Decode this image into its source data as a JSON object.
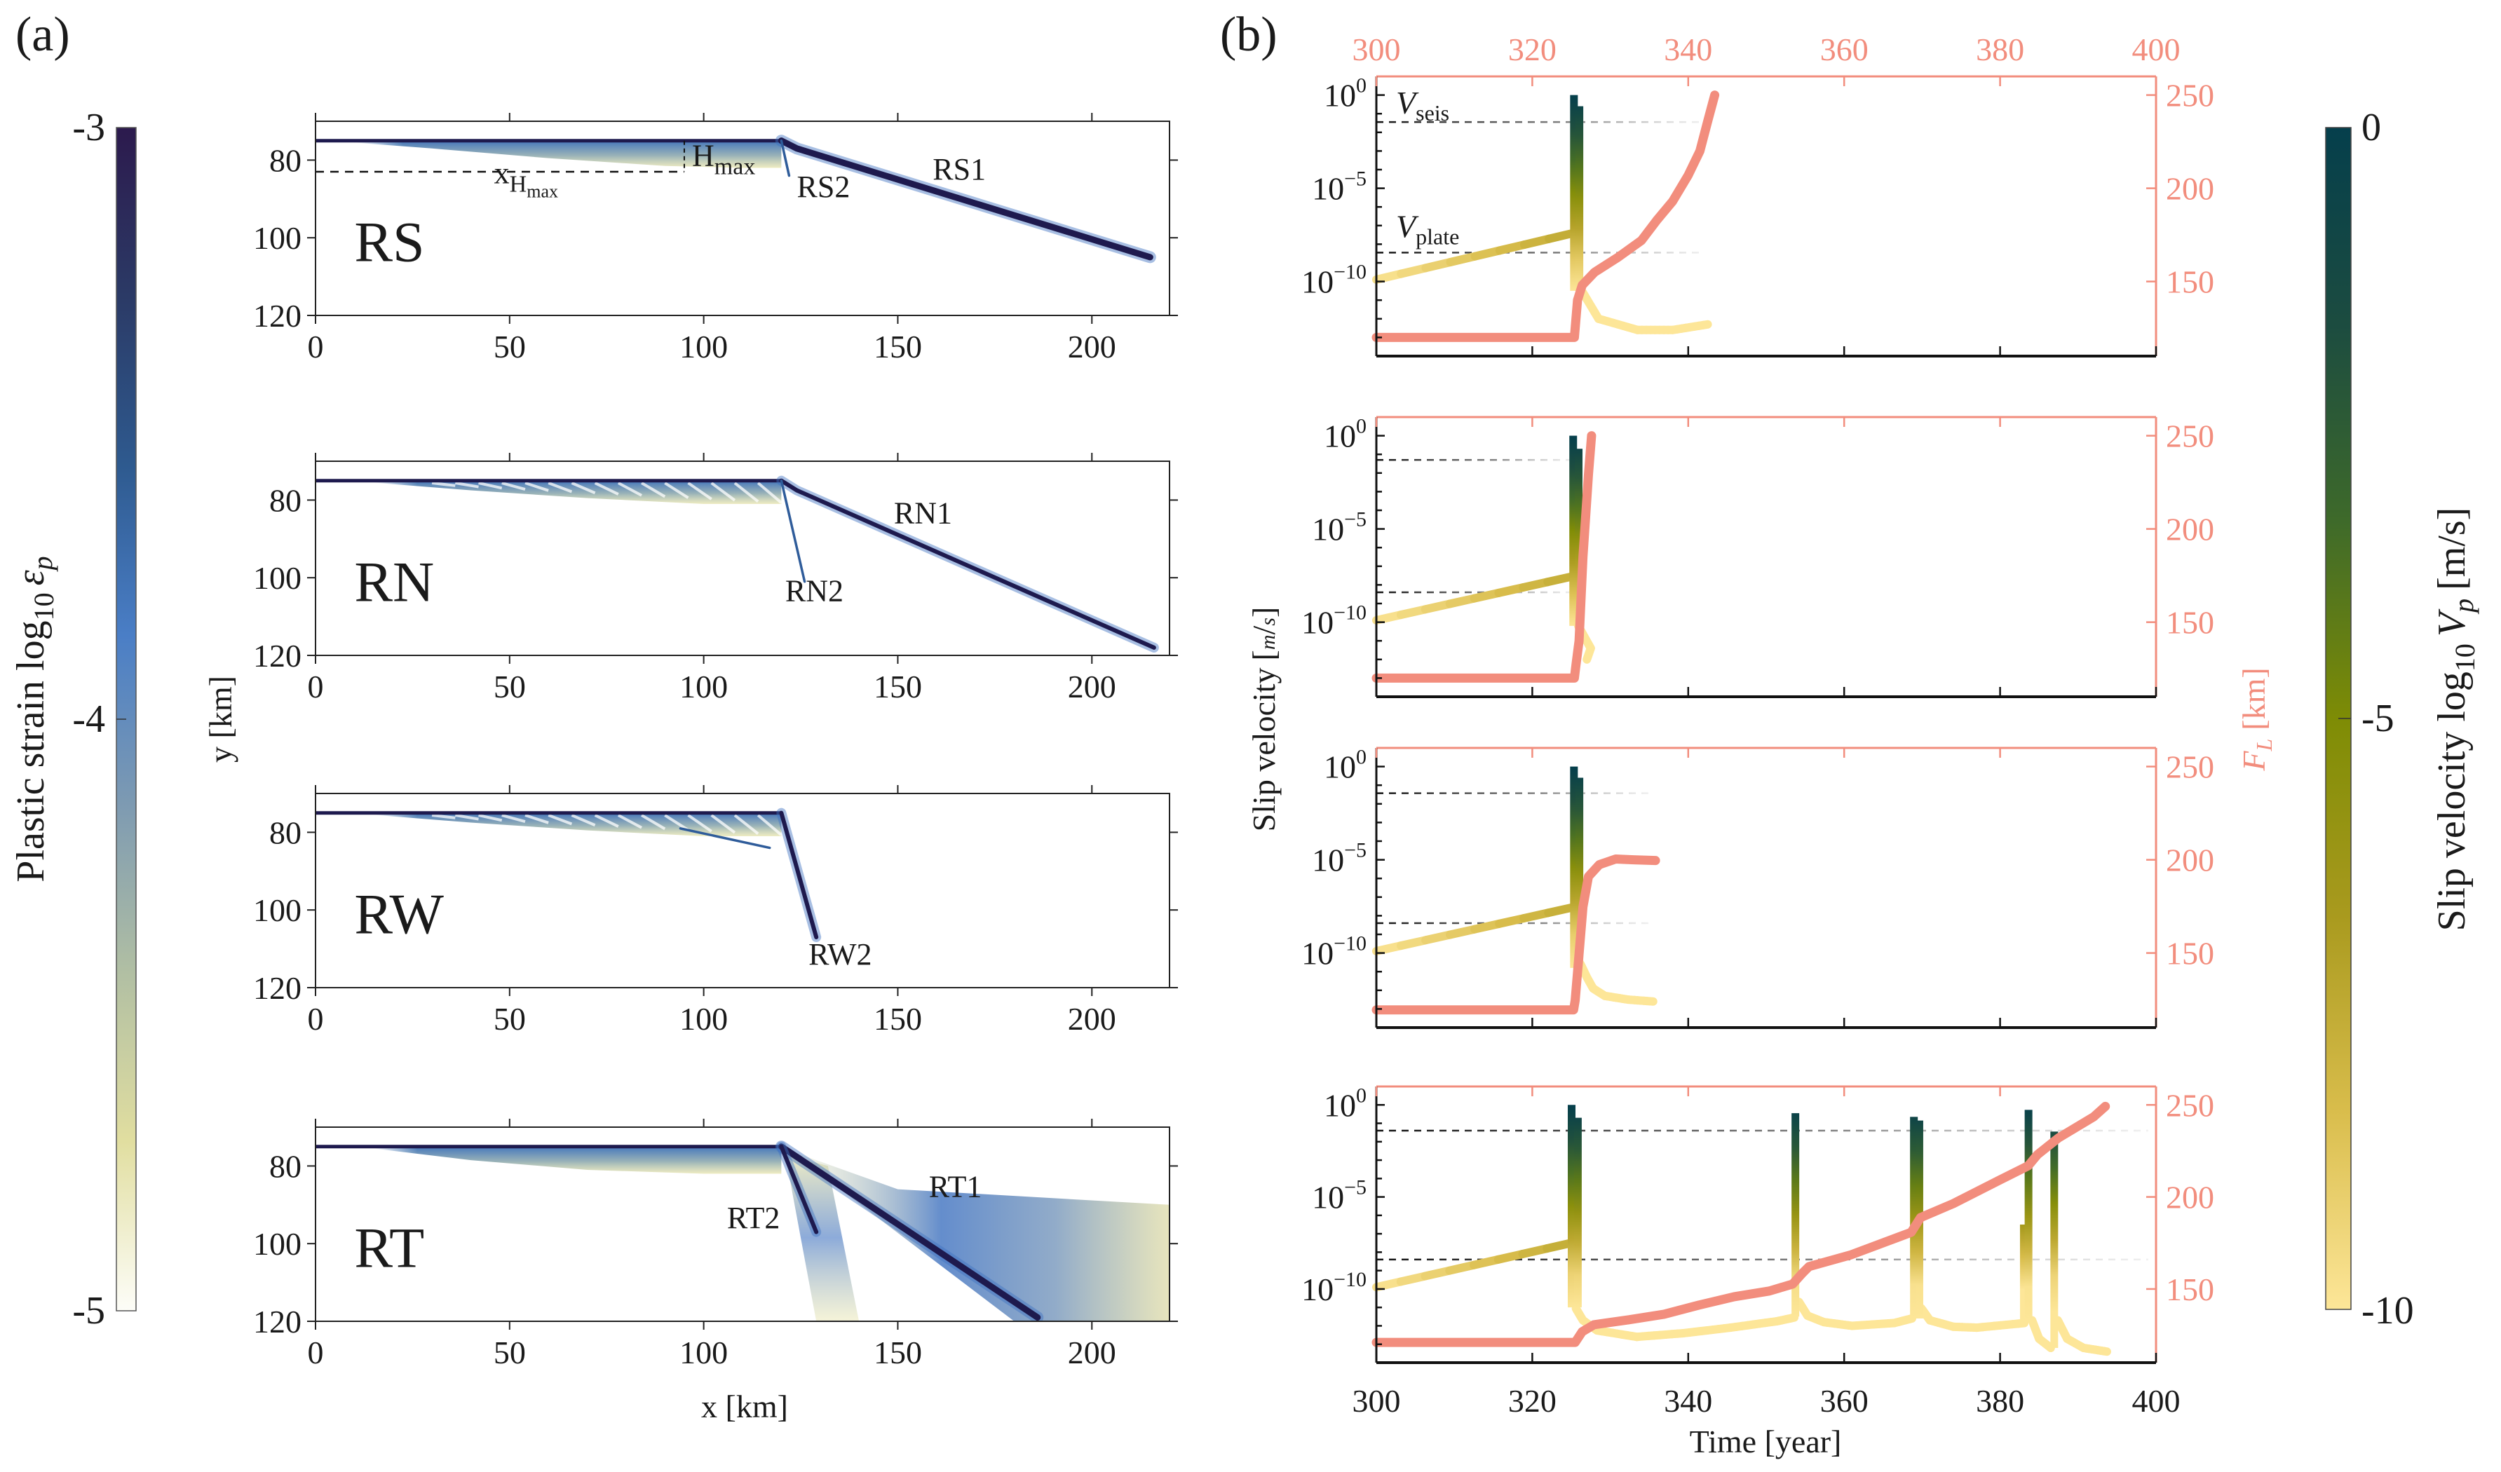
{
  "panel_labels": {
    "a": "(a)",
    "b": "(b)"
  },
  "colorbar_left": {
    "label": "Plastic strain log",
    "label_sub": "10",
    "label_sym": "ε",
    "label_sym_sub": "p",
    "ticks": [
      "-3",
      "-4",
      "-5"
    ],
    "range": [
      -5,
      -3
    ],
    "colors": [
      "#fdfdf8",
      "#e1dea0",
      "#b1bfa3",
      "#7d9ab2",
      "#4a7ec6",
      "#2e5a8f",
      "#2b3a66",
      "#2c1a4d"
    ]
  },
  "colorbar_right": {
    "label": "Slip velocity log",
    "label_sub": "10",
    "label_sym": "V",
    "label_sym_sub": "p",
    "label_unit": "[m/s]",
    "ticks": [
      "0",
      "-5",
      "-10"
    ],
    "range": [
      -10,
      0
    ],
    "colors": [
      "#fde698",
      "#d9bd4c",
      "#a99a1e",
      "#7e8c05",
      "#3e6a2a",
      "#1c4c40",
      "#053f4c"
    ]
  },
  "colors": {
    "fl_curve": "#f28d7d",
    "salmon_axis": "#f28d7d",
    "fault": "#1e1a4e",
    "axis": "#1a1a1a"
  },
  "chart_data": [
    {
      "type": "heatmap",
      "name": "RS",
      "case_label": "RS",
      "xlabel": "",
      "ylabel": "",
      "xlim": [
        0,
        220
      ],
      "ylim": [
        70,
        120
      ],
      "xticks": [
        0,
        50,
        100,
        150,
        200
      ],
      "yticks": [
        80,
        100,
        120
      ],
      "surface_y": 75,
      "wedge": {
        "x": [
          10,
          30,
          60,
          90,
          110,
          120
        ],
        "bottom_y": [
          75.5,
          77,
          79.5,
          81.5,
          82,
          82
        ]
      },
      "faults": [
        {
          "name": "RS1",
          "points": [
            [
              120,
              75
            ],
            [
              124,
              77
            ],
            [
              215,
              105
            ]
          ],
          "width": "thick"
        },
        {
          "name": "RS2",
          "points": [
            [
              120,
              75
            ],
            [
              122,
              84
            ]
          ],
          "width": "thin"
        }
      ],
      "annotations": [
        {
          "text": "RS1",
          "x": 159,
          "y": 85
        },
        {
          "text": "RS2",
          "x": 124,
          "y": 89.5
        },
        {
          "text": "H",
          "sub": "max",
          "x": 97,
          "y": 81.5
        },
        {
          "text": "x",
          "sub": "H",
          "subsub": "max",
          "x": 46,
          "y": 86
        }
      ],
      "xhmax_line_y": 83,
      "hmax_line_x": 95
    },
    {
      "type": "heatmap",
      "name": "RN",
      "case_label": "RN",
      "xlim": [
        0,
        220
      ],
      "ylim": [
        70,
        120
      ],
      "xticks": [
        0,
        50,
        100,
        150,
        200
      ],
      "yticks": [
        80,
        100,
        120
      ],
      "surface_y": 75,
      "wedge": {
        "x": [
          15,
          40,
          70,
          100,
          120
        ],
        "bottom_y": [
          75.5,
          77.5,
          79.5,
          81,
          81
        ]
      },
      "striped": true,
      "faults": [
        {
          "name": "RN1",
          "points": [
            [
              120,
              75
            ],
            [
              124,
              77.5
            ],
            [
              216,
              118
            ]
          ],
          "width": "medium"
        },
        {
          "name": "RN2",
          "points": [
            [
              120,
              75
            ],
            [
              126,
              101
            ]
          ],
          "width": "thin"
        }
      ],
      "annotations": [
        {
          "text": "RN1",
          "x": 149,
          "y": 86
        },
        {
          "text": "RN2",
          "x": 121,
          "y": 106
        }
      ]
    },
    {
      "type": "heatmap",
      "name": "RW",
      "case_label": "RW",
      "xlim": [
        0,
        220
      ],
      "ylim": [
        70,
        120
      ],
      "xticks": [
        0,
        50,
        100,
        150,
        200
      ],
      "yticks": [
        80,
        100,
        120
      ],
      "surface_y": 75,
      "wedge": {
        "x": [
          15,
          40,
          70,
          100,
          120
        ],
        "bottom_y": [
          75.5,
          77.5,
          79.5,
          81,
          81
        ]
      },
      "striped": true,
      "faults": [
        {
          "name": "RW1",
          "points": [
            [
              94,
              79
            ],
            [
              117,
              84
            ]
          ],
          "width": "thin"
        },
        {
          "name": "RW2",
          "points": [
            [
              120,
              75
            ],
            [
              129,
              107
            ]
          ],
          "width": "medium"
        }
      ],
      "annotations": [
        {
          "text": "RW2",
          "x": 127,
          "y": 114
        }
      ]
    },
    {
      "type": "heatmap",
      "name": "RT",
      "case_label": "RT",
      "xlabel": "x [km]",
      "xlim": [
        0,
        220
      ],
      "ylim": [
        70,
        120
      ],
      "xticks": [
        0,
        50,
        100,
        150,
        200
      ],
      "yticks": [
        80,
        100,
        120
      ],
      "surface_y": 75,
      "wedge": {
        "x": [
          15,
          40,
          70,
          100,
          120
        ],
        "bottom_y": [
          75.5,
          78.5,
          81,
          82,
          82
        ]
      },
      "faults": [
        {
          "name": "RT1",
          "points": [
            [
              120,
              75
            ],
            [
              186,
              119
            ]
          ],
          "width": "thick"
        },
        {
          "name": "RT2",
          "points": [
            [
              120,
              75
            ],
            [
              129,
              97
            ]
          ],
          "width": "medium"
        }
      ],
      "halo": true,
      "annotations": [
        {
          "text": "RT1",
          "x": 158,
          "y": 88
        },
        {
          "text": "RT2",
          "x": 106,
          "y": 96
        }
      ]
    },
    {
      "type": "line",
      "name": "slip-RS",
      "xlim": [
        300,
        400
      ],
      "ylim_log10": [
        -14,
        1
      ],
      "y2lim": [
        110,
        260
      ],
      "xticks": [
        300,
        320,
        340,
        360,
        380,
        400
      ],
      "yticks_log10": [
        0,
        -5,
        -10
      ],
      "y2ticks": [
        150,
        200,
        250
      ],
      "top_xticks": [
        "300",
        "320",
        "340",
        "360",
        "380",
        "400"
      ],
      "vseis_log10": -1.45,
      "vplate_log10": -8.45,
      "vseis_label": "V",
      "vseis_sub": "seis",
      "vplate_label": "V",
      "vplate_sub": "plate",
      "ref_line_end": 342,
      "velocity_segments": [
        {
          "t": [
            300,
            325.3
          ],
          "log10v": [
            -9.9,
            -7.4
          ]
        },
        {
          "t": [
            326.5,
            328.5,
            333.5,
            338,
            342.5
          ],
          "log10v": [
            -10.6,
            -12.0,
            -12.6,
            -12.6,
            -12.3
          ]
        }
      ],
      "spikes": [
        {
          "t": 325.3,
          "top_log10": 0.0,
          "bottom_log10": -10.5
        },
        {
          "t": 326.0,
          "top_log10": -0.6,
          "bottom_log10": -10.5
        }
      ],
      "fl": {
        "t": [
          300,
          325.4,
          325.8,
          326.4,
          328,
          331,
          334,
          336,
          338,
          340,
          341.5,
          342.5,
          343.4
        ],
        "km": [
          120,
          120,
          140,
          148,
          155,
          163,
          172,
          183,
          193,
          207,
          220,
          236,
          250
        ]
      }
    },
    {
      "type": "line",
      "name": "slip-RN",
      "xlim": [
        300,
        400
      ],
      "ylim_log10": [
        -14,
        1
      ],
      "y2lim": [
        110,
        260
      ],
      "xticks": [
        300,
        320,
        340,
        360,
        380,
        400
      ],
      "yticks_log10": [
        0,
        -5,
        -10
      ],
      "y2ticks": [
        150,
        200,
        250
      ],
      "vseis_log10": -1.3,
      "vplate_log10": -8.4,
      "ref_line_end": 325.5,
      "ylabel": "Slip velocity [m/s]",
      "velocity_segments": [
        {
          "t": [
            300,
            325.1
          ],
          "log10v": [
            -9.9,
            -7.55
          ]
        },
        {
          "t": [
            325.9,
            326.7,
            327.5,
            327.0
          ],
          "log10v": [
            -10.2,
            -10.8,
            -11.4,
            -12.0
          ]
        }
      ],
      "spikes": [
        {
          "t": 325.2,
          "top_log10": 0.0,
          "bottom_log10": -10.2
        },
        {
          "t": 325.9,
          "top_log10": -0.7,
          "bottom_log10": -10.2
        }
      ],
      "fl": {
        "t": [
          300,
          325.4,
          325.6,
          326.0,
          326.5,
          327.2,
          327.6
        ],
        "km": [
          120,
          120,
          127,
          140,
          185,
          229,
          250
        ]
      }
    },
    {
      "type": "line",
      "name": "slip-RW",
      "xlim": [
        300,
        400
      ],
      "ylim_log10": [
        -14,
        1
      ],
      "y2lim": [
        110,
        260
      ],
      "xticks": [
        300,
        320,
        340,
        360,
        380,
        400
      ],
      "yticks_log10": [
        0,
        -5,
        -10
      ],
      "y2ticks": [
        150,
        200,
        250
      ],
      "y2label": "F_L [km]",
      "vseis_log10": -1.43,
      "vplate_log10": -8.4,
      "ref_line_end": 335,
      "velocity_segments": [
        {
          "t": [
            300,
            325.2
          ],
          "log10v": [
            -9.9,
            -7.55
          ]
        },
        {
          "t": [
            326.2,
            327.0,
            327.8,
            329.3,
            332.3,
            335.5
          ],
          "log10v": [
            -10.6,
            -11.3,
            -11.9,
            -12.3,
            -12.5,
            -12.6
          ]
        }
      ],
      "spikes": [
        {
          "t": 325.3,
          "top_log10": 0.0,
          "bottom_log10": -10.8
        },
        {
          "t": 326.0,
          "top_log10": -0.6,
          "bottom_log10": -10.8
        }
      ],
      "fl": {
        "t": [
          300,
          325.3,
          325.5,
          326.0,
          326.5,
          327.2,
          328.6,
          330.7,
          333,
          335.8
        ],
        "km": [
          119.5,
          119.5,
          124.6,
          149.6,
          174.8,
          191,
          197.4,
          200.4,
          200,
          199.6
        ]
      }
    },
    {
      "type": "line",
      "name": "slip-RT",
      "xlabel": "Time [year]",
      "xlim": [
        300,
        400
      ],
      "ylim_log10": [
        -14,
        1
      ],
      "y2lim": [
        110,
        260
      ],
      "xticks": [
        300,
        320,
        340,
        360,
        380,
        400
      ],
      "yticks_log10": [
        0,
        -5,
        -10
      ],
      "y2ticks": [
        150,
        200,
        250
      ],
      "xtick_labels": [
        "300",
        "320",
        "340",
        "360",
        "380",
        "400"
      ],
      "vseis_log10": -1.4,
      "vplate_log10": -8.4,
      "ref_line_end": 399,
      "velocity_segments": [
        {
          "t": [
            300,
            325.0
          ],
          "log10v": [
            -9.9,
            -7.5
          ]
        },
        {
          "t": [
            325.6,
            326.5,
            328.3,
            333.4,
            339.4,
            345.4,
            351.4,
            353.6
          ],
          "log10v": [
            -11.06,
            -11.7,
            -12.25,
            -12.6,
            -12.4,
            -12.1,
            -11.75,
            -11.55
          ]
        },
        {
          "t": [
            354.2,
            355.3,
            357.4,
            361,
            366.4,
            368.7
          ],
          "log10v": [
            -10.7,
            -11.45,
            -11.8,
            -12.0,
            -11.85,
            -11.6
          ]
        },
        {
          "t": [
            369.9,
            371,
            374,
            377,
            383.1
          ],
          "log10v": [
            -11.05,
            -11.7,
            -12.05,
            -12.1,
            -11.85
          ]
        },
        {
          "t": [
            384.1,
            385,
            386.5
          ],
          "log10v": [
            -11.7,
            -12.7,
            -13.2
          ]
        },
        {
          "t": [
            387.4,
            388.6,
            390.7,
            393.7
          ],
          "log10v": [
            -11.7,
            -12.7,
            -13.2,
            -13.4
          ]
        }
      ],
      "spikes": [
        {
          "t": 325.0,
          "top_log10": 0.0,
          "bottom_log10": -11.0
        },
        {
          "t": 325.8,
          "top_log10": -0.7,
          "bottom_log10": -11.0
        },
        {
          "t": 353.7,
          "top_log10": -0.45,
          "bottom_log10": -11.5
        },
        {
          "t": 368.9,
          "top_log10": -0.65,
          "bottom_log10": -11.6
        },
        {
          "t": 369.6,
          "top_log10": -0.85,
          "bottom_log10": -11.6
        },
        {
          "t": 383.0,
          "top_log10": -6.5,
          "bottom_log10": -11.8
        },
        {
          "t": 383.6,
          "top_log10": -0.27,
          "bottom_log10": -11.8
        },
        {
          "t": 386.9,
          "top_log10": -1.45,
          "bottom_log10": -13.2
        }
      ],
      "fl": {
        "t": [
          300,
          325.5,
          326.4,
          327.9,
          332.4,
          336.9,
          341.4,
          345.9,
          350.4,
          353.4,
          354.6,
          355.5,
          360.9,
          366.9,
          368.6,
          369.8,
          374,
          380,
          383.6,
          384.8,
          387.5,
          392,
          393.5
        ],
        "km": [
          121,
          121,
          126.8,
          130.6,
          133.3,
          136.3,
          141.3,
          145.8,
          148.9,
          152.7,
          158.4,
          162.2,
          168.6,
          178.1,
          180.8,
          188.8,
          196.4,
          209.3,
          216.9,
          223,
          232.1,
          243.5,
          249.2
        ]
      }
    }
  ],
  "axes_labels": {
    "a_ylabel": "y [km]",
    "a_xlabel": "x [km]",
    "b_xlabel": "Time [year]",
    "b_ylabel": "Slip velocity",
    "b_ylabel_unit_num": "m",
    "b_ylabel_unit_den": "s",
    "b_y2label": "F",
    "b_y2label_sub": "L",
    "b_y2label_unit": "[km]"
  }
}
